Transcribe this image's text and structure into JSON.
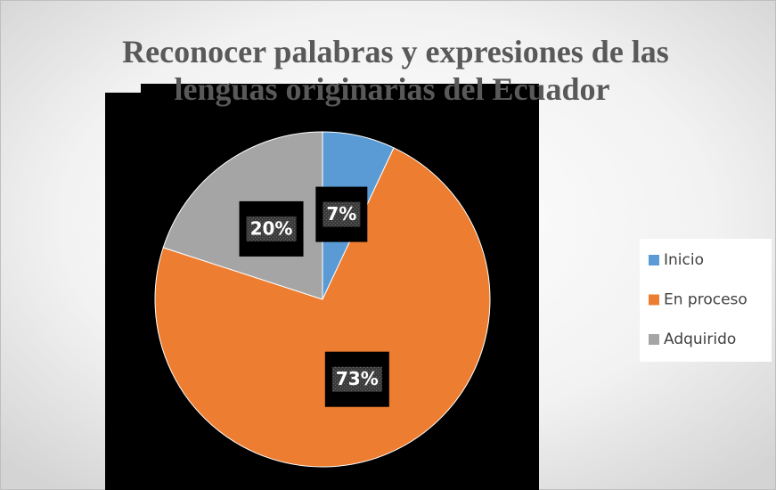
{
  "chart_data": {
    "type": "pie",
    "title_lines": [
      "Reconocer palabras y expresiones de las",
      "lenguas originarias del Ecuador"
    ],
    "categories": [
      "Inicio",
      "En proceso",
      "Adquirido"
    ],
    "values": [
      7,
      73,
      20
    ],
    "value_labels": [
      "7%",
      "73%",
      "20%"
    ],
    "colors": [
      "#5b9bd5",
      "#ed7d31",
      "#a5a5a5"
    ],
    "legend": "right"
  }
}
